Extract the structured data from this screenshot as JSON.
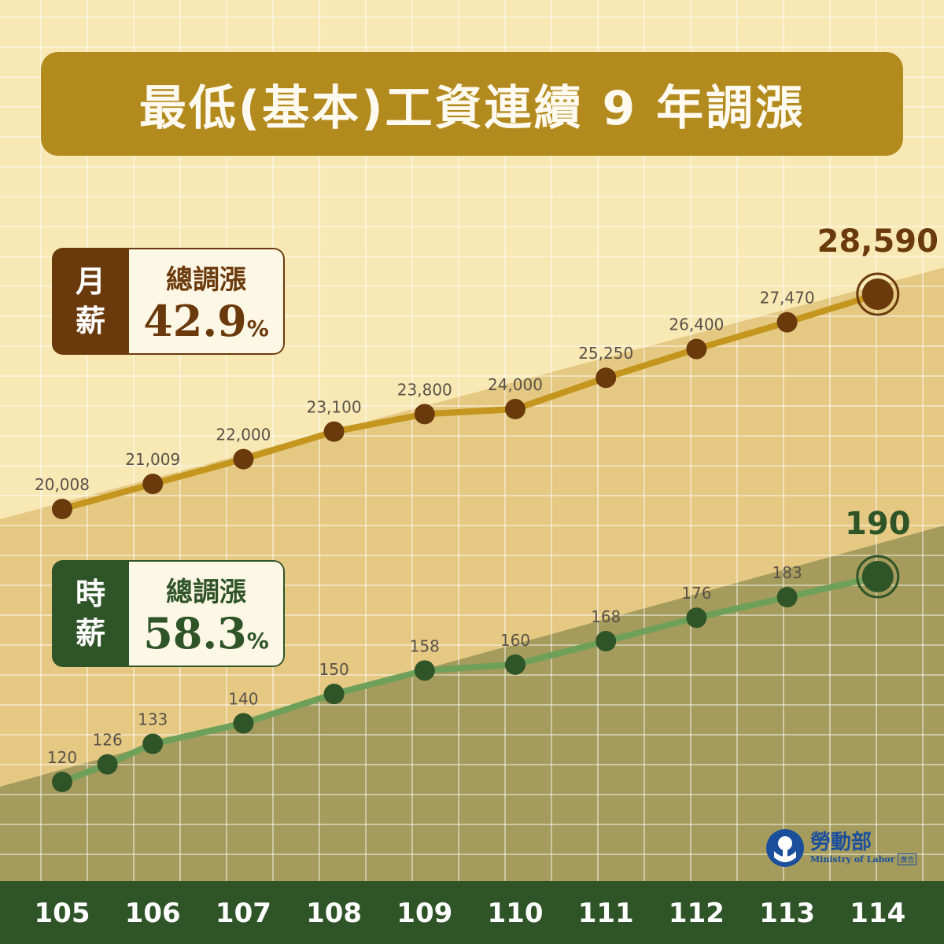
{
  "title": "最低(基本)工資連續 9 年調漲",
  "badges": {
    "monthly": {
      "tag_line1": "月",
      "tag_line2": "薪",
      "sub": "總調漲",
      "value": "42.9",
      "pct": "%"
    },
    "hourly": {
      "tag_line1": "時",
      "tag_line2": "薪",
      "sub": "總調漲",
      "value": "58.3",
      "pct": "%"
    }
  },
  "logo": {
    "cn": "勞動部",
    "en": "Ministry of Labor",
    "ad": "廣告"
  },
  "colors": {
    "background_light": "#f8e8b4",
    "background_mid": "#e5c983",
    "background_dark": "#a49b5c",
    "title_bg": "#b38a1e",
    "monthly_line": "#c4961e",
    "monthly_point": "#6b3a0c",
    "hourly_line": "#6fa05a",
    "hourly_point": "#2f5428",
    "axis_band": "#2f5428"
  },
  "chart_data": [
    {
      "type": "line",
      "categories": [
        "105",
        "106",
        "107",
        "108",
        "109",
        "110",
        "111",
        "112",
        "113",
        "114"
      ],
      "series": [
        {
          "name": "月薪",
          "points": [
            {
              "x": "105",
              "y": 20008,
              "label": "20,008"
            },
            {
              "x": "106",
              "y": 21009,
              "label": "21,009"
            },
            {
              "x": "107",
              "y": 22000,
              "label": "22,000"
            },
            {
              "x": "108",
              "y": 23100,
              "label": "23,100"
            },
            {
              "x": "109",
              "y": 23800,
              "label": "23,800"
            },
            {
              "x": "110",
              "y": 24000,
              "label": "24,000"
            },
            {
              "x": "111",
              "y": 25250,
              "label": "25,250"
            },
            {
              "x": "112",
              "y": 26400,
              "label": "26,400"
            },
            {
              "x": "113",
              "y": 27470,
              "label": "27,470"
            },
            {
              "x": "114",
              "y": 28590,
              "label": "28,590"
            }
          ]
        },
        {
          "name": "時薪",
          "points": [
            {
              "x": "105",
              "y": 120,
              "label": "120"
            },
            {
              "x": "105.5",
              "y": 126,
              "label": "126"
            },
            {
              "x": "106",
              "y": 133,
              "label": "133"
            },
            {
              "x": "107",
              "y": 140,
              "label": "140"
            },
            {
              "x": "108",
              "y": 150,
              "label": "150"
            },
            {
              "x": "109",
              "y": 158,
              "label": "158"
            },
            {
              "x": "110",
              "y": 160,
              "label": "160"
            },
            {
              "x": "111",
              "y": 168,
              "label": "168"
            },
            {
              "x": "112",
              "y": 176,
              "label": "176"
            },
            {
              "x": "113",
              "y": 183,
              "label": "183"
            },
            {
              "x": "114",
              "y": 190,
              "label": "190"
            }
          ]
        }
      ],
      "grid": true,
      "title": "最低(基本)工資連續 9 年調漲",
      "xlabel": "",
      "ylabel": ""
    }
  ]
}
